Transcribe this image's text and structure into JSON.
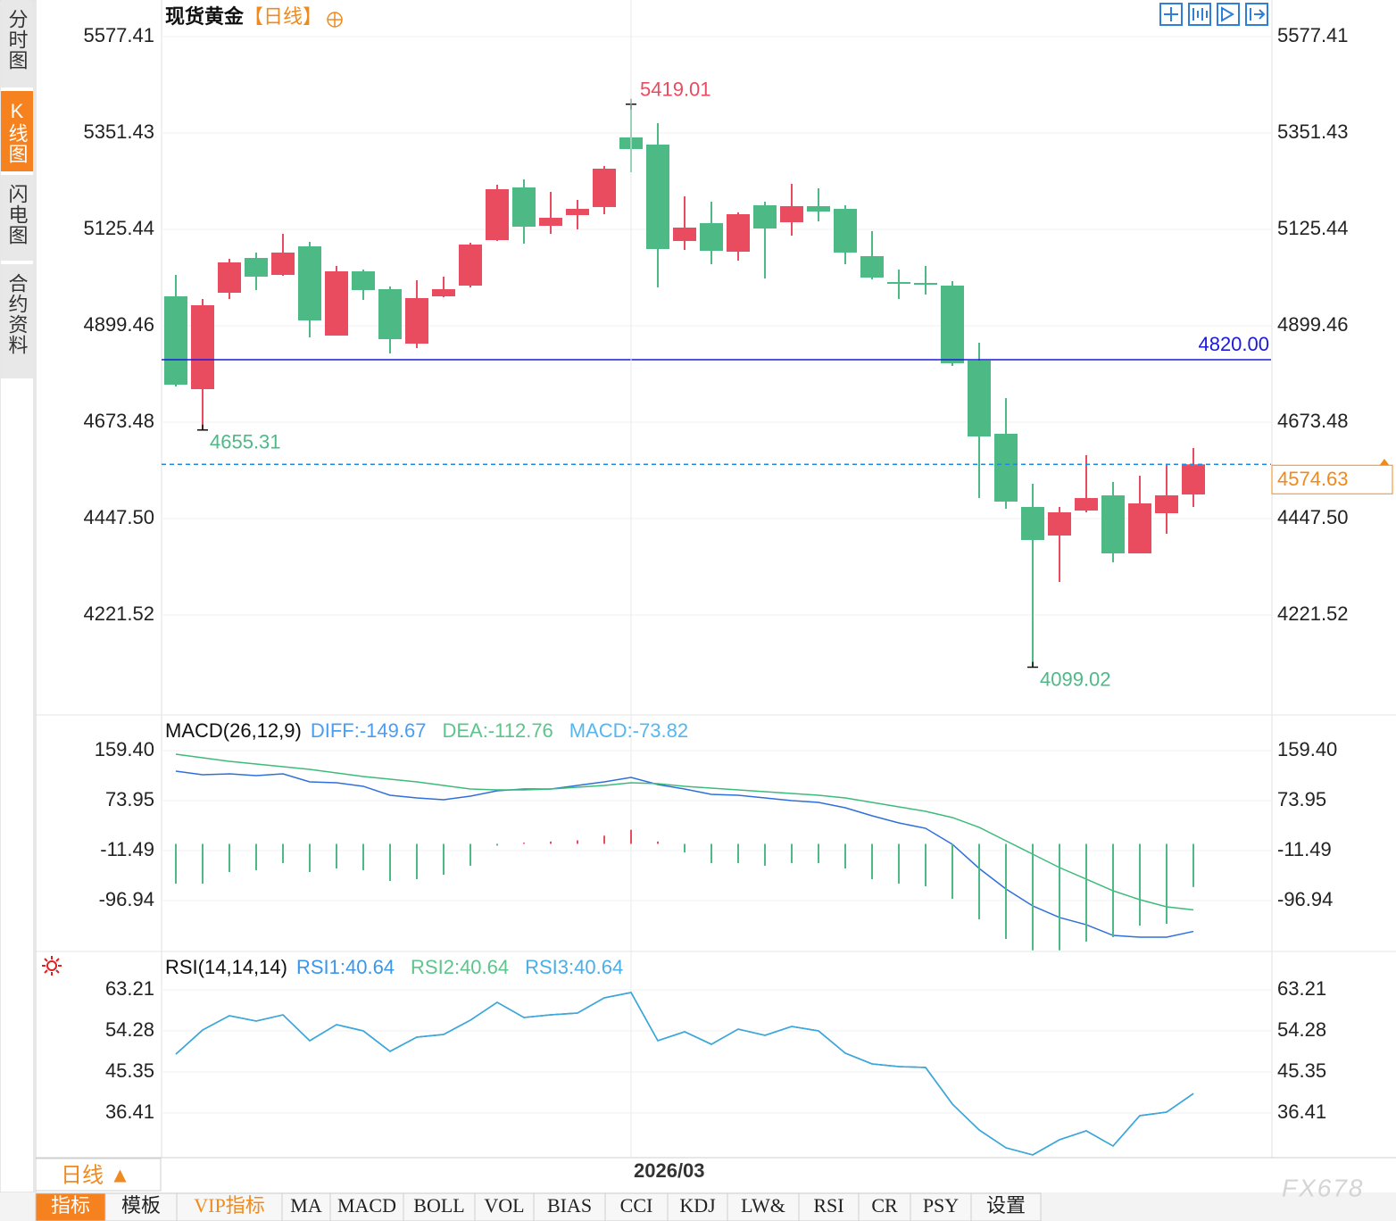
{
  "sidebar": [
    "分时图",
    "K线图",
    "闪电图",
    "合约资料"
  ],
  "footer": {
    "timeframe": "日线 ▲",
    "tabs": [
      "指标",
      "模板",
      "VIP指标",
      "MA",
      "MACD",
      "BOLL",
      "VOL",
      "BIAS",
      "CCI",
      "KDJ",
      "LW&",
      "RSI",
      "CR",
      "PSY",
      "设置"
    ]
  },
  "watermark": "FX678",
  "chart_data": [
    {
      "type": "candlestick",
      "title": "现货黄金",
      "subtitle": "【日线】",
      "categories": [
        null,
        null,
        null,
        null,
        null,
        null,
        null,
        null,
        null,
        null,
        null,
        null,
        null,
        null,
        null,
        null,
        null,
        "2026/03",
        null,
        null,
        null,
        null,
        null,
        null,
        null,
        null,
        null,
        null,
        null,
        null,
        null,
        null,
        null,
        null,
        null,
        null,
        null,
        null,
        null
      ],
      "open": [
        4968.5,
        4750.9,
        4976.9,
        5058.5,
        5018.7,
        5085.7,
        4876.5,
        5027.1,
        4985.3,
        4857.6,
        4968.5,
        4993.6,
        5100.3,
        5223.8,
        5133.8,
        5158.9,
        5177.8,
        5341.0,
        5324.2,
        5098.2,
        5140.1,
        5073.1,
        5182.0,
        5142.2,
        5179.9,
        5173.6,
        5062.7,
        5002.0,
        4999.9,
        4993.6,
        4817.9,
        4646.3,
        4474.7,
        4407.8,
        4466.3,
        4501.9,
        4365.9,
        4460.1,
        4504.0
      ],
      "high": [
        5018.7,
        4962.2,
        5056.4,
        5071.1,
        5115.0,
        5096.2,
        5039.7,
        5031.3,
        4991.5,
        5006.2,
        5014.6,
        5094.1,
        5230.1,
        5242.6,
        5213.3,
        5194.5,
        5274.0,
        5419.01,
        5374.4,
        5202.9,
        5190.3,
        5165.2,
        5190.3,
        5232.2,
        5221.7,
        5181.9,
        5121.3,
        5031.3,
        5039.7,
        5004.1,
        4859.7,
        4730.0,
        4529.1,
        4474.7,
        4596.1,
        4533.3,
        4547.9,
        4575.2,
        4612.8
      ],
      "low": [
        4757.2,
        4655.31,
        4962.2,
        4983.2,
        5016.6,
        4872.3,
        4876.5,
        4960.2,
        4834.6,
        4847.2,
        4966.4,
        4989.4,
        5098.2,
        5092.0,
        5115.0,
        5125.5,
        5161.0,
        5259.4,
        4989.4,
        5077.3,
        5043.8,
        5052.2,
        5010.4,
        5110.8,
        5144.3,
        5043.8,
        5008.3,
        4962.2,
        4972.7,
        4805.3,
        4495.6,
        4470.5,
        4099.02,
        4299.0,
        4462.2,
        4345.0,
        4365.9,
        4411.9,
        4474.7
      ],
      "close": [
        4761.4,
        4947.6,
        5048.0,
        5014.6,
        5071.1,
        4912.0,
        5027.1,
        4983.2,
        4868.1,
        4964.3,
        4985.3,
        5089.9,
        5219.6,
        5131.7,
        5152.7,
        5173.6,
        5267.7,
        5313.8,
        5079.4,
        5129.6,
        5075.2,
        5161.0,
        5127.5,
        5179.9,
        5167.3,
        5071.1,
        5012.5,
        4999.9,
        4997.8,
        4811.6,
        4640.0,
        4487.3,
        4397.3,
        4462.2,
        4495.6,
        4365.9,
        4483.1,
        4501.9,
        4574.63
      ],
      "up_color": "#e94b5f",
      "down_color": "#4dba86",
      "ylim": [
        3989.3,
        5652.7
      ],
      "yticks": [
        {
          "value": 4221.52,
          "label": "4221.52"
        },
        {
          "value": 4447.5,
          "label": "4447.50"
        },
        4673.48,
        4899.46,
        5125.44,
        5351.43,
        5577.41
      ],
      "grid": true,
      "hline": {
        "value": 4820,
        "label": "4820.00",
        "color": "#1a1adf"
      },
      "last_price_color": "#1e88e5",
      "last_label_color": "#f08a1c"
    },
    {
      "type": "macd",
      "title": "MACD(26,12,9)",
      "series": [
        {
          "name": "DIFF:-149.67",
          "color": "#2f6fdc",
          "label_color": "#4a9ef0",
          "values": [
            124.3,
            118.2,
            119.7,
            116.7,
            119.7,
            106.0,
            104.5,
            98.4,
            83.1,
            78.5,
            75.5,
            81.6,
            90.7,
            93.8,
            93.8,
            99.9,
            106.0,
            113.6,
            101.4,
            93.8,
            84.6,
            83.1,
            78.5,
            73.9,
            70.9,
            61.7,
            48.0,
            35.8,
            26.6,
            -0.8,
            -42.0,
            -77.1,
            -106.1,
            -125.9,
            -138.2,
            -156.5,
            -159.5,
            -159.5,
            -149.67
          ]
        },
        {
          "name": "DEA:-112.76",
          "color": "#3dbb7a",
          "label_color": "#5cc48c",
          "values": [
            153.3,
            147.2,
            141.1,
            136.5,
            131.9,
            127.4,
            121.3,
            115.1,
            110.6,
            106.0,
            99.9,
            93.8,
            92.3,
            92.3,
            93.8,
            96.8,
            99.9,
            104.5,
            102.9,
            98.4,
            95.3,
            92.3,
            89.2,
            86.2,
            83.1,
            78.5,
            70.9,
            63.3,
            55.6,
            45.0,
            28.2,
            5.3,
            -17.6,
            -40.5,
            -60.3,
            -80.2,
            -95.4,
            -107.6,
            -112.76
          ]
        },
        {
          "name": "MACD:-73.82",
          "label_color": "#55b6f0",
          "bars": true,
          "up_color": "#e94b5f",
          "down_color": "#4dba86",
          "values": [
            -68.0,
            -68.0,
            -48.1,
            -45.1,
            -32.9,
            -48.1,
            -42.0,
            -45.1,
            -63.4,
            -60.3,
            -52.7,
            -37.4,
            -3,
            2,
            4,
            6,
            14,
            24,
            4,
            -14.6,
            -32.9,
            -32.9,
            -37.4,
            -32.9,
            -32.9,
            -42.0,
            -60.3,
            -68.0,
            -72.5,
            -93.9,
            -129.0,
            -162.6,
            -182.0,
            -182.0,
            -167.1,
            -159.5,
            -139.7,
            -136.6,
            -73.82
          ]
        }
      ],
      "ylim": [
        -182.4,
        217.38
      ],
      "yticks": [
        -96.94,
        -11.49,
        73.95,
        {
          "value": 159.4,
          "label": "159.40"
        }
      ],
      "grid": true
    },
    {
      "type": "line",
      "title": "RSI(14,14,14)",
      "series": [
        {
          "name": "RSI1:40.64",
          "color": "#3a8fe6",
          "label_color": "#3a96e8",
          "values": [
            49.23,
            54.47,
            57.58,
            56.42,
            57.77,
            52.14,
            55.64,
            54.28,
            49.82,
            52.92,
            53.5,
            56.61,
            60.49,
            57.19,
            57.77,
            58.16,
            61.46,
            62.63,
            52.14,
            54.09,
            51.37,
            54.67,
            53.31,
            55.25,
            54.28,
            49.43,
            47.1,
            46.51,
            46.32,
            38.36,
            32.73,
            28.85,
            27.3,
            30.6,
            32.54,
            29.24,
            35.84,
            36.61,
            40.64
          ]
        },
        {
          "name": "RSI2:40.64",
          "color": "#5cc08a",
          "label_color": "#5cc48c",
          "values": [
            49.23,
            54.47,
            57.58,
            56.42,
            57.77,
            52.14,
            55.64,
            54.28,
            49.82,
            52.92,
            53.5,
            56.61,
            60.49,
            57.19,
            57.77,
            58.16,
            61.46,
            62.63,
            52.14,
            54.09,
            51.37,
            54.67,
            53.31,
            55.25,
            54.28,
            49.43,
            47.1,
            46.51,
            46.32,
            38.36,
            32.73,
            28.85,
            27.3,
            30.6,
            32.54,
            29.24,
            35.84,
            36.61,
            40.64
          ]
        },
        {
          "name": "RSI3:40.64",
          "color": "#3ca6e2",
          "label_color": "#4aaee8",
          "values": [
            49.23,
            54.47,
            57.58,
            56.42,
            57.77,
            52.14,
            55.64,
            54.28,
            49.82,
            52.92,
            53.5,
            56.61,
            60.49,
            57.19,
            57.77,
            58.16,
            61.46,
            62.63,
            52.14,
            54.09,
            51.37,
            54.67,
            53.31,
            55.25,
            54.28,
            49.43,
            47.1,
            46.51,
            46.32,
            38.36,
            32.73,
            28.85,
            27.3,
            30.6,
            32.54,
            29.24,
            35.84,
            36.61,
            40.64
          ]
        }
      ],
      "ylim": [
        26.71,
        71.17
      ],
      "yticks": [
        36.41,
        45.35,
        54.28,
        63.21
      ],
      "grid": true
    }
  ]
}
